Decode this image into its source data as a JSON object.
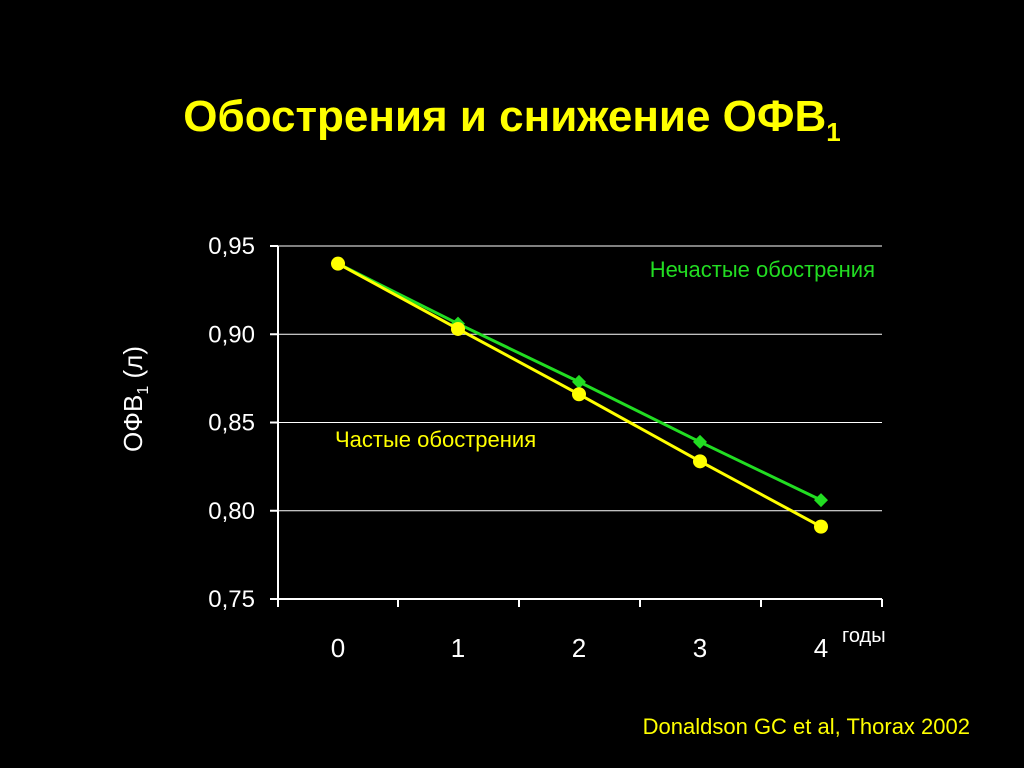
{
  "slide": {
    "title_main": "Обострения и снижение ОФВ",
    "title_subscript": "1",
    "citation": "Donaldson GC et al, Thorax 2002"
  },
  "colors": {
    "background": "#000000",
    "title": "#ffff00",
    "axis": "#ffffff",
    "infrequent": "#22dd22",
    "frequent": "#ffff00"
  },
  "chart_data": {
    "type": "line",
    "ylabel_main": "ОФВ",
    "ylabel_subscript": "1",
    "ylabel_unit": " (л)",
    "xlabel": "годы",
    "ylim": [
      0.75,
      0.95
    ],
    "y_ticks": [
      {
        "value": 0.75,
        "label": "0,75"
      },
      {
        "value": 0.8,
        "label": "0,80"
      },
      {
        "value": 0.85,
        "label": "0,85"
      },
      {
        "value": 0.9,
        "label": "0,90"
      },
      {
        "value": 0.95,
        "label": "0,95"
      }
    ],
    "categories": [
      "0",
      "1",
      "2",
      "3",
      "4"
    ],
    "grid": true,
    "series": [
      {
        "name": "Нечастые обострения",
        "color": "#22dd22",
        "marker": "diamond",
        "values": [
          0.94,
          0.906,
          0.873,
          0.839,
          0.806
        ]
      },
      {
        "name": "Частые обострения",
        "color": "#ffff00",
        "marker": "circle",
        "values": [
          0.94,
          0.903,
          0.866,
          0.828,
          0.791
        ]
      }
    ]
  }
}
